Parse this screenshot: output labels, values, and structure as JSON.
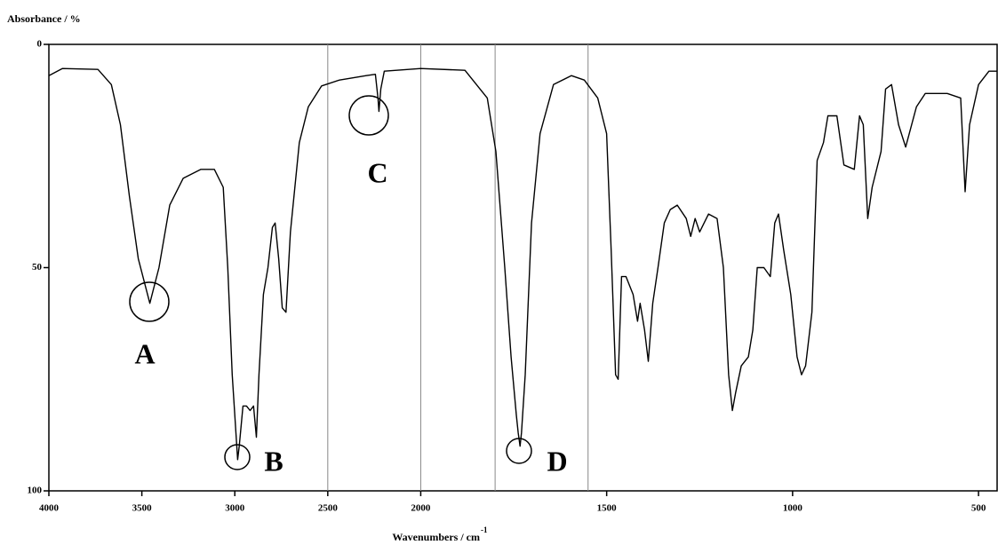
{
  "chart_data": {
    "type": "line",
    "y_label": "Absorbance / %",
    "x_label": "Wavenumbers / cm",
    "x_label_superscript": "-1",
    "xlim": [
      4000,
      450
    ],
    "x_break": 2000,
    "x_expansion_below_break": 2,
    "xticks": [
      4000,
      3500,
      3000,
      2500,
      2000,
      1500,
      1000,
      500
    ],
    "ylim": [
      0,
      100
    ],
    "yticks": [
      0,
      50,
      100
    ],
    "y_inverted": true,
    "guide_lines": [
      2500,
      2000,
      1800,
      1550
    ],
    "annotations": [
      "A",
      "B",
      "C",
      "D"
    ],
    "series": [
      {
        "color": "#000000",
        "x": [
          4000,
          3928,
          3736,
          3664,
          3615,
          3567,
          3519,
          3457,
          3408,
          3350,
          3278,
          3182,
          3110,
          3062,
          3038,
          3014,
          3000,
          2985,
          2976,
          2956,
          2937,
          2918,
          2899,
          2884,
          2870,
          2846,
          2822,
          2798,
          2783,
          2764,
          2745,
          2725,
          2701,
          2653,
          2605,
          2533,
          2437,
          2293,
          2244,
          2230,
          2225,
          2215,
          2196,
          2000,
          1881,
          1821,
          1798,
          1774,
          1757,
          1743,
          1738,
          1733,
          1729,
          1719,
          1702,
          1679,
          1643,
          1595,
          1560,
          1524,
          1500,
          1488,
          1476,
          1469,
          1460,
          1448,
          1429,
          1417,
          1410,
          1398,
          1388,
          1376,
          1362,
          1345,
          1329,
          1310,
          1286,
          1274,
          1262,
          1250,
          1226,
          1203,
          1186,
          1172,
          1162,
          1153,
          1138,
          1119,
          1107,
          1095,
          1077,
          1060,
          1048,
          1038,
          1024,
          1005,
          988,
          976,
          965,
          948,
          934,
          917,
          905,
          881,
          862,
          834,
          820,
          810,
          798,
          786,
          762,
          750,
          734,
          715,
          696,
          667,
          643,
          584,
          548,
          536,
          524,
          500,
          472,
          450
        ],
        "values": [
          7,
          5.4,
          5.6,
          9,
          18,
          34,
          48,
          58,
          50,
          36,
          30,
          28,
          28,
          32,
          50,
          74,
          83,
          93,
          90,
          81,
          81,
          82,
          81,
          88,
          74,
          56,
          50,
          41,
          40,
          48,
          59,
          60,
          42,
          22,
          14,
          9.3,
          8,
          7,
          6.7,
          12,
          15,
          10,
          6,
          5.4,
          5.8,
          12,
          24,
          50,
          70,
          83,
          87,
          90,
          87,
          74,
          40,
          20,
          9,
          7,
          8,
          12,
          20,
          46,
          74,
          75,
          52,
          52,
          56,
          62,
          58,
          64,
          71,
          58,
          50,
          40,
          37,
          36,
          39,
          43,
          39,
          42,
          38,
          39,
          50,
          74,
          82,
          78,
          72,
          70,
          64,
          50,
          50,
          52,
          40,
          38,
          46,
          56,
          70,
          74,
          72,
          60,
          26,
          22,
          16,
          16,
          27,
          28,
          16,
          18,
          39,
          32,
          24,
          10,
          9,
          18,
          23,
          14,
          11,
          11,
          12,
          33,
          18,
          9,
          6,
          6
        ]
      }
    ]
  }
}
